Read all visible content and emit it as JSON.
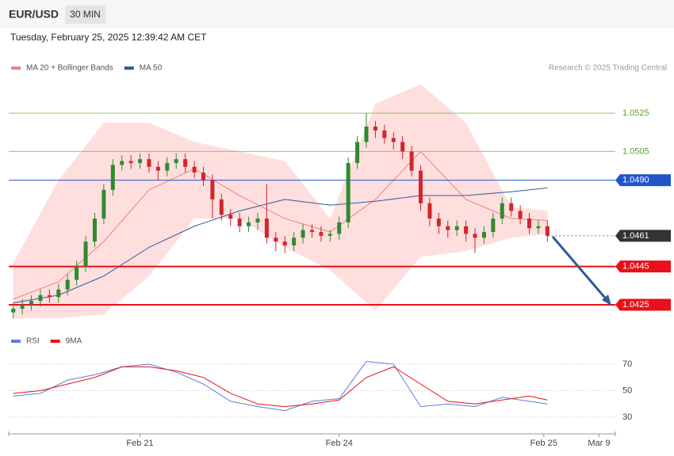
{
  "header": {
    "symbol": "EUR/USD",
    "interval": "30 MIN",
    "timestamp": "Tuesday, February 25, 2025 12:39:42 AM CET",
    "credit": "Research © 2025 Trading Central"
  },
  "chart_data": [
    {
      "type": "candlestick",
      "up_color": "#2e8b2e",
      "down_color": "#d0262e",
      "xlim": [
        -0.5,
        66.5
      ],
      "ylim": [
        1.0415,
        1.0543
      ],
      "candles": [
        [
          1.0421,
          1.0426,
          1.0418,
          1.0423
        ],
        [
          1.0423,
          1.0428,
          1.042,
          1.0425
        ],
        [
          1.0425,
          1.043,
          1.0422,
          1.0427
        ],
        [
          1.0427,
          1.0433,
          1.0424,
          1.043
        ],
        [
          1.043,
          1.0433,
          1.0426,
          1.0429
        ],
        [
          1.0429,
          1.0436,
          1.0426,
          1.0433
        ],
        [
          1.0433,
          1.0441,
          1.043,
          1.0438
        ],
        [
          1.0438,
          1.0448,
          1.0435,
          1.0445
        ],
        [
          1.0445,
          1.0461,
          1.0442,
          1.0458
        ],
        [
          1.0458,
          1.0473,
          1.0455,
          1.047
        ],
        [
          1.047,
          1.0488,
          1.0467,
          1.0485
        ],
        [
          1.0485,
          1.0501,
          1.0482,
          1.0498
        ],
        [
          1.0498,
          1.0503,
          1.0495,
          1.05
        ],
        [
          1.05,
          1.0503,
          1.0496,
          1.0499
        ],
        [
          1.0499,
          1.0504,
          1.0496,
          1.0501
        ],
        [
          1.0501,
          1.0504,
          1.0494,
          1.0497
        ],
        [
          1.0497,
          1.05,
          1.049,
          1.0495
        ],
        [
          1.0495,
          1.0502,
          1.0492,
          1.0499
        ],
        [
          1.0499,
          1.0504,
          1.0496,
          1.0501
        ],
        [
          1.0501,
          1.0504,
          1.0494,
          1.0497
        ],
        [
          1.0497,
          1.05,
          1.0491,
          1.0494
        ],
        [
          1.0494,
          1.0497,
          1.0487,
          1.049
        ],
        [
          1.049,
          1.0493,
          1.047,
          1.048
        ],
        [
          1.048,
          1.0483,
          1.0469,
          1.0472
        ],
        [
          1.0472,
          1.0475,
          1.0466,
          1.047
        ],
        [
          1.047,
          1.0473,
          1.0463,
          1.0466
        ],
        [
          1.0466,
          1.0471,
          1.0463,
          1.0468
        ],
        [
          1.0468,
          1.0473,
          1.0464,
          1.047
        ],
        [
          1.047,
          1.0488,
          1.0457,
          1.046
        ],
        [
          1.046,
          1.0463,
          1.0453,
          1.0458
        ],
        [
          1.0458,
          1.0461,
          1.0452,
          1.0456
        ],
        [
          1.0456,
          1.0463,
          1.0453,
          1.046
        ],
        [
          1.046,
          1.0467,
          1.0457,
          1.0464
        ],
        [
          1.0464,
          1.0467,
          1.046,
          1.0463
        ],
        [
          1.0463,
          1.0466,
          1.0458,
          1.0461
        ],
        [
          1.0461,
          1.0464,
          1.0458,
          1.0462
        ],
        [
          1.0462,
          1.0471,
          1.0459,
          1.0468
        ],
        [
          1.0468,
          1.0502,
          1.0465,
          1.0499
        ],
        [
          1.0499,
          1.0513,
          1.0496,
          1.051
        ],
        [
          1.051,
          1.0525,
          1.0507,
          1.0518
        ],
        [
          1.0518,
          1.0521,
          1.0512,
          1.0516
        ],
        [
          1.0516,
          1.0519,
          1.0509,
          1.0512
        ],
        [
          1.0512,
          1.0515,
          1.0506,
          1.051
        ],
        [
          1.051,
          1.0513,
          1.0501,
          1.0505
        ],
        [
          1.0505,
          1.0508,
          1.0492,
          1.0495
        ],
        [
          1.0495,
          1.0498,
          1.0474,
          1.0478
        ],
        [
          1.0478,
          1.0481,
          1.0466,
          1.047
        ],
        [
          1.047,
          1.0473,
          1.0462,
          1.0466
        ],
        [
          1.0466,
          1.0469,
          1.046,
          1.0464
        ],
        [
          1.0464,
          1.0469,
          1.0461,
          1.0466
        ],
        [
          1.0466,
          1.0469,
          1.0458,
          1.0462
        ],
        [
          1.0462,
          1.0465,
          1.0452,
          1.046
        ],
        [
          1.046,
          1.0466,
          1.0457,
          1.0463
        ],
        [
          1.0463,
          1.0473,
          1.046,
          1.047
        ],
        [
          1.047,
          1.0481,
          1.0467,
          1.0478
        ],
        [
          1.0478,
          1.0481,
          1.0471,
          1.0474
        ],
        [
          1.0474,
          1.0477,
          1.0467,
          1.047
        ],
        [
          1.047,
          1.0473,
          1.0462,
          1.0465
        ],
        [
          1.0465,
          1.0469,
          1.0462,
          1.0466
        ],
        [
          1.0466,
          1.0469,
          1.0458,
          1.0461
        ]
      ],
      "x": [
        0,
        5,
        10,
        15,
        20,
        25,
        30,
        35,
        40,
        45,
        50,
        55,
        59
      ],
      "series": [
        {
          "name": "MA 20 + Bollinger Bands",
          "color": "#f08080",
          "band_color": "#ffd6d6",
          "values": [
            1.0428,
            1.0437,
            1.0458,
            1.0485,
            1.0496,
            1.0482,
            1.047,
            1.0463,
            1.048,
            1.0505,
            1.048,
            1.047,
            1.0469
          ],
          "upper": [
            1.0447,
            1.049,
            1.052,
            1.052,
            1.051,
            1.0505,
            1.05,
            1.047,
            1.053,
            1.054,
            1.052,
            1.0476,
            1.0474
          ],
          "lower": [
            1.0418,
            1.0418,
            1.042,
            1.044,
            1.047,
            1.047,
            1.0455,
            1.0443,
            1.0422,
            1.045,
            1.0453,
            1.046,
            1.0462
          ]
        },
        {
          "name": "MA 50",
          "color": "#2e5a9c",
          "values": [
            1.0426,
            1.043,
            1.044,
            1.0455,
            1.0466,
            1.0474,
            1.048,
            1.0477,
            1.0479,
            1.0482,
            1.0482,
            1.0484,
            1.0486
          ]
        }
      ],
      "levels": [
        {
          "value": 1.0525,
          "color": "#8fc46a",
          "width": 1,
          "boxed": false
        },
        {
          "value": 1.0505,
          "color": "#8fc46a",
          "width": 1,
          "boxed": false
        },
        {
          "value": 1.049,
          "label": "1.0490",
          "color": "#2255cc",
          "width": 1,
          "boxed": true
        },
        {
          "value": 1.0461,
          "color": "#333333",
          "width": 1,
          "boxed": true,
          "dashed": true
        },
        {
          "value": 1.0445,
          "color": "#e8101a",
          "width": 2,
          "boxed": true
        },
        {
          "value": 1.0425,
          "color": "#e8101a",
          "width": 2,
          "boxed": true
        }
      ]
    },
    {
      "type": "line",
      "xlim": [
        -0.5,
        66.5
      ],
      "ylim": [
        22,
        78
      ],
      "yticks": [
        30,
        50,
        70
      ],
      "x": [
        0,
        3,
        6,
        9,
        12,
        15,
        18,
        21,
        24,
        27,
        30,
        33,
        36,
        39,
        42,
        45,
        48,
        51,
        54,
        57,
        59
      ],
      "series": [
        {
          "name": "RSI",
          "color": "#5b7fd6",
          "values": [
            46,
            48,
            58,
            62,
            68,
            70,
            64,
            55,
            42,
            38,
            35,
            42,
            44,
            72,
            70,
            38,
            40,
            38,
            45,
            42,
            40
          ]
        },
        {
          "name": "9MA",
          "color": "#e8101a",
          "values": [
            48,
            50,
            55,
            60,
            68,
            68,
            65,
            60,
            48,
            40,
            38,
            40,
            43,
            60,
            68,
            55,
            42,
            40,
            43,
            46,
            43
          ]
        }
      ],
      "xticks": [
        {
          "value": 14,
          "label": "Feb 21"
        },
        {
          "value": 36,
          "label": "Feb 24"
        },
        {
          "value": 58.6,
          "label": "Feb 25"
        },
        {
          "value": 64.7,
          "label": "Mar 9"
        }
      ]
    }
  ]
}
